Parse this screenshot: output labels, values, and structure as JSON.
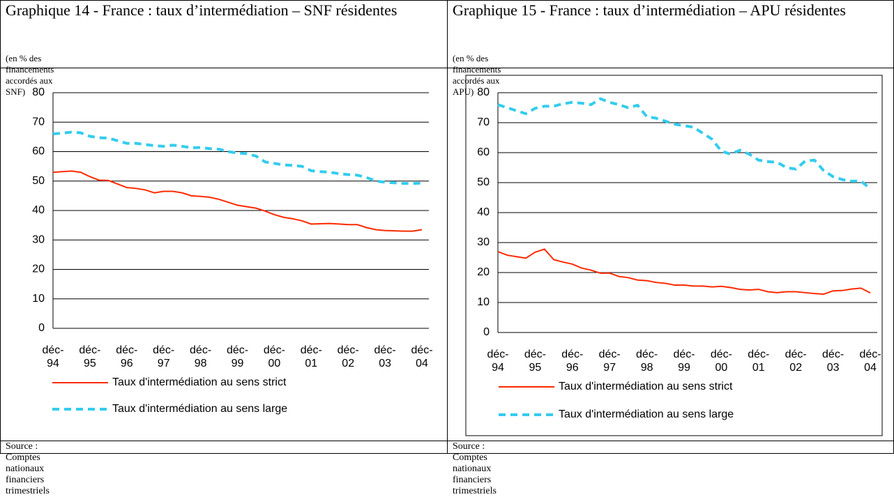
{
  "chart_data": [
    {
      "type": "line",
      "title": "Graphique 14 - France : taux d’intermédiation – SNF résidentes",
      "subtitle": "(en % des financements accordés aux SNF)",
      "source": "Source : Comptes nationaux financiers trimestriels",
      "categories": [
        "déc-94",
        null,
        null,
        null,
        "déc-95",
        null,
        null,
        null,
        "déc-96",
        null,
        null,
        null,
        "déc-97",
        null,
        null,
        null,
        "déc-98",
        null,
        null,
        null,
        "déc-99",
        null,
        null,
        null,
        "déc-00",
        null,
        null,
        null,
        "déc-01",
        null,
        null,
        null,
        "déc-02",
        null,
        null,
        null,
        "déc-03",
        null,
        null,
        null,
        "déc-04"
      ],
      "ylim": [
        0,
        80
      ],
      "yticks": [
        0,
        10,
        20,
        30,
        40,
        50,
        60,
        70,
        80
      ],
      "grid": true,
      "legend": "bottom",
      "series": [
        {
          "name": "Taux d'intermédiation au sens strict",
          "color": "#ff2a00",
          "style": "solid",
          "values": [
            53,
            53.2,
            53.4,
            53,
            51.5,
            50.3,
            50.2,
            49,
            47.8,
            47.5,
            47,
            46,
            46.5,
            46.5,
            46,
            45,
            44.8,
            44.5,
            43.8,
            42.8,
            41.8,
            41.3,
            40.8,
            39.8,
            38.6,
            37.7,
            37.2,
            36.5,
            35.4,
            35.5,
            35.6,
            35.4,
            35.2,
            35.2,
            34.2,
            33.5,
            33.2,
            33.1,
            33,
            33,
            33.5
          ]
        },
        {
          "name": "Taux d'intermédiation au sens large",
          "color": "#33ccee",
          "style": "dashed",
          "values": [
            66,
            66.3,
            66.6,
            66.4,
            65.2,
            64.7,
            64.6,
            63.7,
            62.8,
            62.8,
            62.4,
            62,
            61.8,
            62.2,
            61.8,
            61.3,
            61.4,
            61,
            60.8,
            60,
            59.5,
            59.3,
            58.5,
            56.5,
            56,
            55.5,
            55.3,
            55,
            53.5,
            53.2,
            53,
            52.5,
            52.2,
            52,
            51.2,
            50,
            49.6,
            49.4,
            49.2,
            49.2,
            49.3
          ]
        }
      ]
    },
    {
      "type": "line",
      "title": "Graphique 15 - France : taux d’intermédiation – APU résidentes",
      "subtitle": "(en % des financements accordés aux APU)",
      "source": "Source : Comptes nationaux financiers trimestriels",
      "categories": [
        "déc-94",
        null,
        null,
        null,
        "déc-95",
        null,
        null,
        null,
        "déc-96",
        null,
        null,
        null,
        "déc-97",
        null,
        null,
        null,
        "déc-98",
        null,
        null,
        null,
        "déc-99",
        null,
        null,
        null,
        "déc-00",
        null,
        null,
        null,
        "déc-01",
        null,
        null,
        null,
        "déc-02",
        null,
        null,
        null,
        "déc-03",
        null,
        null,
        null,
        "déc-04"
      ],
      "ylim": [
        0,
        80
      ],
      "yticks": [
        0,
        10,
        20,
        30,
        40,
        50,
        60,
        70,
        80
      ],
      "grid": true,
      "legend": "bottom",
      "series": [
        {
          "name": "Taux d'intermédiation au sens strict",
          "color": "#ff2a00",
          "style": "solid",
          "values": [
            27,
            25.8,
            25.3,
            24.8,
            26.8,
            27.8,
            24.3,
            23.5,
            22.8,
            21.5,
            20.8,
            19.8,
            19.8,
            18.7,
            18.3,
            17.5,
            17.3,
            16.7,
            16.4,
            15.8,
            15.8,
            15.5,
            15.5,
            15.2,
            15.4,
            15,
            14.4,
            14.2,
            14.4,
            13.6,
            13.3,
            13.6,
            13.6,
            13.3,
            13,
            12.8,
            13.9,
            14,
            14.5,
            14.8,
            13.2
          ]
        },
        {
          "name": "Taux d'intermédiation au sens large",
          "color": "#33ccee",
          "style": "dashed",
          "values": [
            76,
            75,
            74,
            73,
            74.8,
            75.5,
            75.5,
            76.3,
            76.8,
            76.5,
            76,
            78,
            76.8,
            76,
            75,
            75.8,
            72,
            71.5,
            70.5,
            69.5,
            69,
            68.5,
            66.5,
            64.5,
            60.5,
            59.5,
            60.8,
            59.5,
            57.5,
            57,
            56.8,
            55,
            54.5,
            57.2,
            57.5,
            54,
            52,
            51,
            50.5,
            50.5,
            48
          ]
        }
      ]
    }
  ]
}
